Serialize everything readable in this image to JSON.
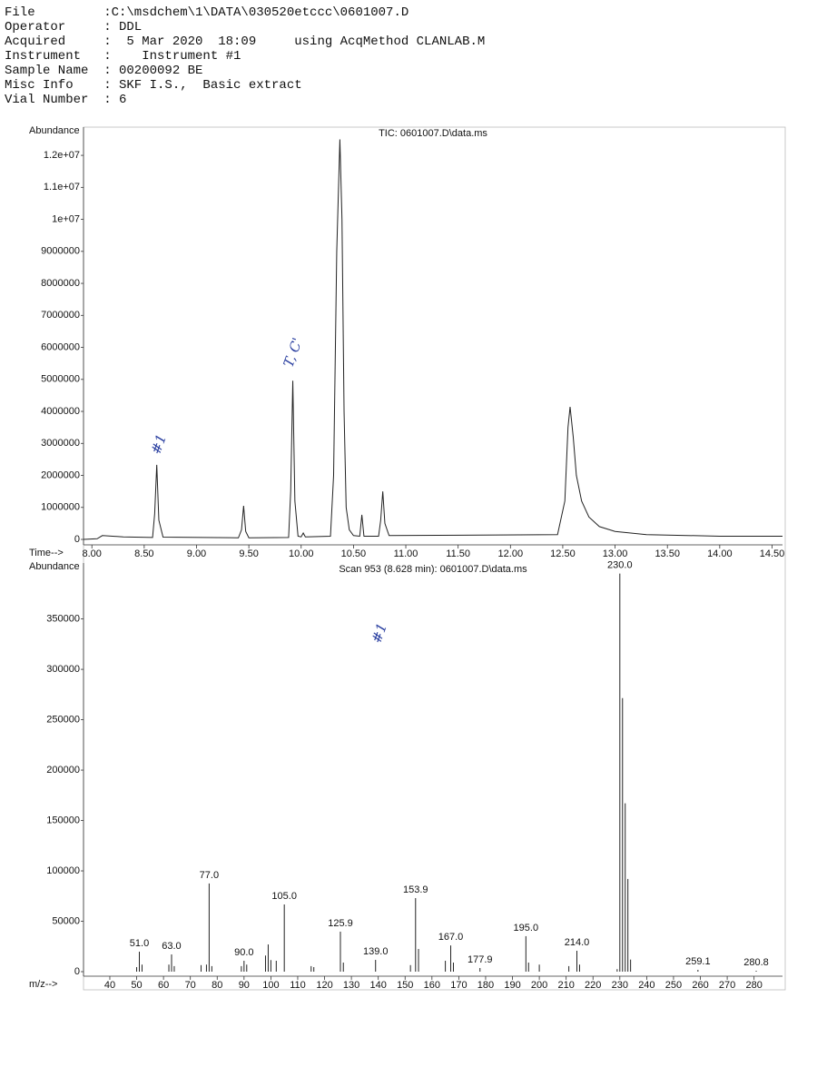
{
  "header": [
    {
      "label": "File",
      "value": ":C:\\msdchem\\1\\DATA\\030520etccc\\0601007.D"
    },
    {
      "label": "Operator",
      "value": ": DDL"
    },
    {
      "label": "Acquired",
      "value": ":  5 Mar 2020  18:09     using AcqMethod CLANLAB.M"
    },
    {
      "label": "Instrument",
      "value": ":    Instrument #1"
    },
    {
      "label": "Sample Name",
      "value": ": 00200092 BE"
    },
    {
      "label": "Misc Info",
      "value": ": SKF I.S.,  Basic extract"
    },
    {
      "label": "Vial Number",
      "value": ": 6"
    }
  ],
  "chart_data": [
    {
      "type": "line",
      "title": "TIC: 0601007.D\\data.ms",
      "y_label": "Abundance",
      "x_label": "Time-->",
      "annotations": [
        "#1",
        "T, C'"
      ],
      "color": "#222222",
      "xlim": [
        7.92,
        14.6
      ],
      "ylim": [
        -170000,
        12740000
      ],
      "xticks": [
        {
          "value": 8,
          "label": "8.00"
        },
        {
          "value": 8.5,
          "label": "8.50"
        },
        {
          "value": 9,
          "label": "9.00"
        },
        {
          "value": 9.5,
          "label": "9.50"
        },
        {
          "value": 10,
          "label": "10.00"
        },
        {
          "value": 10.5,
          "label": "10.50"
        },
        {
          "value": 11,
          "label": "11.00"
        },
        {
          "value": 11.5,
          "label": "11.50"
        },
        {
          "value": 12,
          "label": "12.00"
        },
        {
          "value": 12.5,
          "label": "12.50"
        },
        {
          "value": 13,
          "label": "13.00"
        },
        {
          "value": 13.5,
          "label": "13.50"
        },
        {
          "value": 14,
          "label": "14.00"
        },
        {
          "value": 14.5,
          "label": "14.50"
        }
      ],
      "yticks": [
        0,
        1000000,
        2000000,
        3000000,
        4000000,
        5000000,
        6000000,
        7000000,
        8000000,
        9000000,
        {
          "value": 10000000,
          "label": "1e+07"
        },
        {
          "value": 11000000,
          "label": "1.1e+07"
        },
        {
          "value": 12000000,
          "label": "1.2e+07"
        }
      ],
      "x": [
        7.92,
        8.05,
        8.1,
        8.3,
        8.58,
        8.6,
        8.62,
        8.64,
        8.68,
        9.4,
        9.43,
        9.45,
        9.47,
        9.5,
        9.88,
        9.9,
        9.92,
        9.94,
        9.97,
        10.0,
        10.02,
        10.04,
        10.28,
        10.31,
        10.34,
        10.37,
        10.39,
        10.41,
        10.43,
        10.46,
        10.5,
        10.56,
        10.58,
        10.6,
        10.74,
        10.76,
        10.78,
        10.8,
        10.84,
        12.45,
        12.52,
        12.55,
        12.57,
        12.6,
        12.63,
        12.68,
        12.75,
        12.85,
        13.0,
        13.3,
        14.0,
        14.6
      ],
      "values": [
        0,
        20000,
        120000,
        80000,
        60000,
        800000,
        2330000,
        600000,
        70000,
        50000,
        300000,
        1050000,
        250000,
        50000,
        60000,
        1500000,
        4960000,
        1200000,
        100000,
        80000,
        200000,
        80000,
        100000,
        2000000,
        9000000,
        12500000,
        10000000,
        4000000,
        1000000,
        300000,
        120000,
        100000,
        770000,
        100000,
        100000,
        600000,
        1500000,
        500000,
        120000,
        150000,
        1200000,
        3500000,
        4140000,
        3200000,
        2000000,
        1200000,
        700000,
        400000,
        250000,
        150000,
        100000,
        100000
      ]
    },
    {
      "type": "stem",
      "title": "Scan 953 (8.628 min): 0601007.D\\data.ms",
      "y_label": "Abundance",
      "x_label": "m/z-->",
      "annotations": [
        "#1"
      ],
      "color": "#222222",
      "xlim": [
        30.2,
        290.6
      ],
      "ylim": [
        -4500,
        401000
      ],
      "xticks": [
        40,
        50,
        60,
        70,
        80,
        90,
        100,
        110,
        120,
        130,
        140,
        150,
        160,
        170,
        180,
        190,
        200,
        210,
        220,
        230,
        240,
        250,
        260,
        270,
        280
      ],
      "yticks": [
        0,
        50000,
        100000,
        150000,
        200000,
        250000,
        300000,
        350000
      ],
      "x": [
        50,
        51.0,
        52,
        62,
        63.0,
        64,
        74,
        76,
        77.0,
        78,
        89,
        90.0,
        91,
        98,
        99,
        100,
        102,
        105.0,
        115,
        116,
        125.9,
        127,
        139.0,
        152,
        153.9,
        155,
        165,
        167.0,
        168,
        177.9,
        195.0,
        196,
        200,
        211,
        214.0,
        215,
        229,
        230.0,
        231,
        232,
        233,
        234,
        259.1,
        280.8
      ],
      "values": [
        4500,
        19800,
        7000,
        7000,
        17100,
        5500,
        6500,
        7000,
        87500,
        5500,
        5500,
        10800,
        7000,
        16000,
        27000,
        11500,
        10800,
        66700,
        5500,
        4500,
        39700,
        9000,
        11700,
        6500,
        73000,
        22500,
        10800,
        26000,
        9000,
        3600,
        35200,
        9000,
        7000,
        5500,
        20700,
        7000,
        2500,
        395000,
        271500,
        167000,
        92000,
        12000,
        1800,
        900
      ],
      "x_labels": [
        null,
        "51.0",
        null,
        null,
        "63.0",
        null,
        null,
        null,
        "77.0",
        null,
        null,
        "90.0",
        null,
        null,
        null,
        null,
        null,
        "105.0",
        null,
        null,
        "125.9",
        null,
        "139.0",
        null,
        "153.9",
        null,
        null,
        "167.0",
        null,
        "177.9",
        "195.0",
        null,
        null,
        null,
        "214.0",
        null,
        null,
        "230.0",
        null,
        null,
        null,
        null,
        "259.1",
        "280.8"
      ]
    }
  ]
}
